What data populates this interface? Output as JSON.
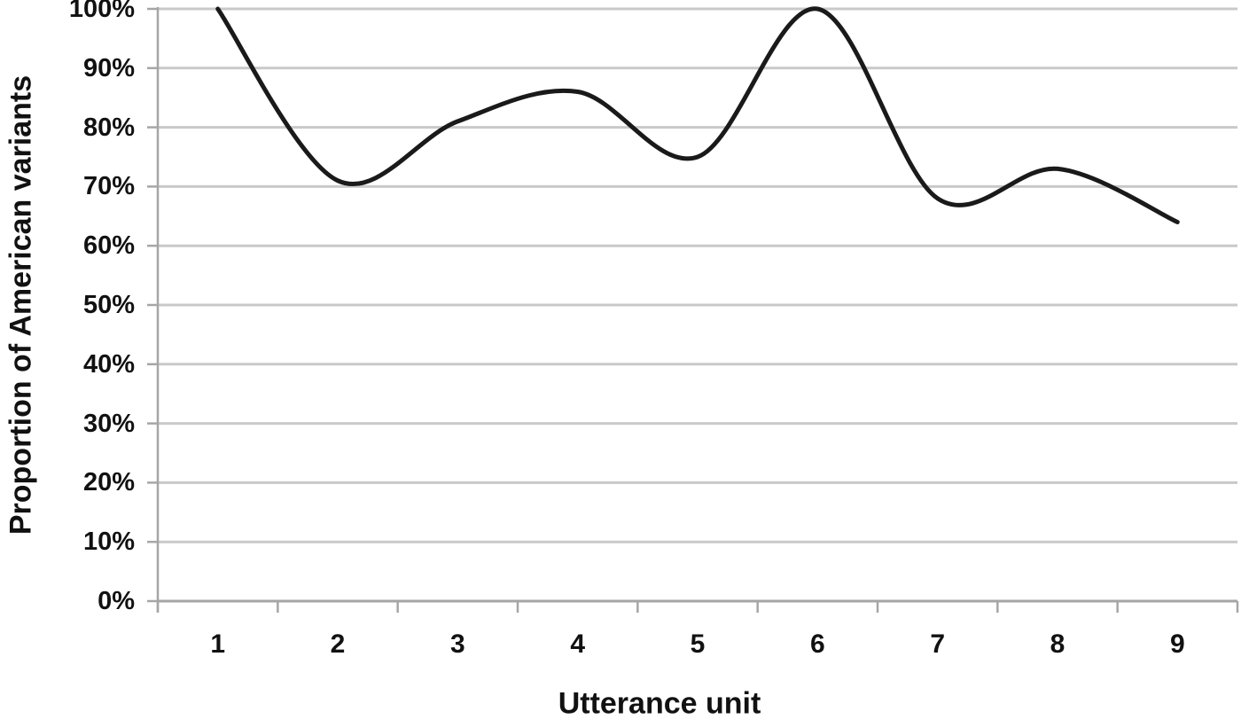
{
  "chart_data": {
    "type": "line",
    "line_style": "smooth",
    "x": [
      1,
      2,
      3,
      4,
      5,
      6,
      7,
      8,
      9
    ],
    "values": [
      100,
      71,
      81,
      86,
      75,
      100,
      68,
      73,
      64
    ],
    "title": "",
    "xlabel": "Utterance unit",
    "ylabel": "Proportion of American variants",
    "xticks": [
      "1",
      "2",
      "3",
      "4",
      "5",
      "6",
      "7",
      "8",
      "9"
    ],
    "yticks": [
      "0%",
      "10%",
      "20%",
      "30%",
      "40%",
      "50%",
      "60%",
      "70%",
      "80%",
      "90%",
      "100%"
    ],
    "ylim": [
      0,
      100
    ],
    "ytick_step": 10,
    "grid": "horizontal",
    "legend": "none",
    "colors": {
      "line": "#1a1a1a",
      "gridline": "#c9c9c9",
      "axis": "#a6a6a6",
      "text": "#111111",
      "background": "#ffffff"
    }
  }
}
